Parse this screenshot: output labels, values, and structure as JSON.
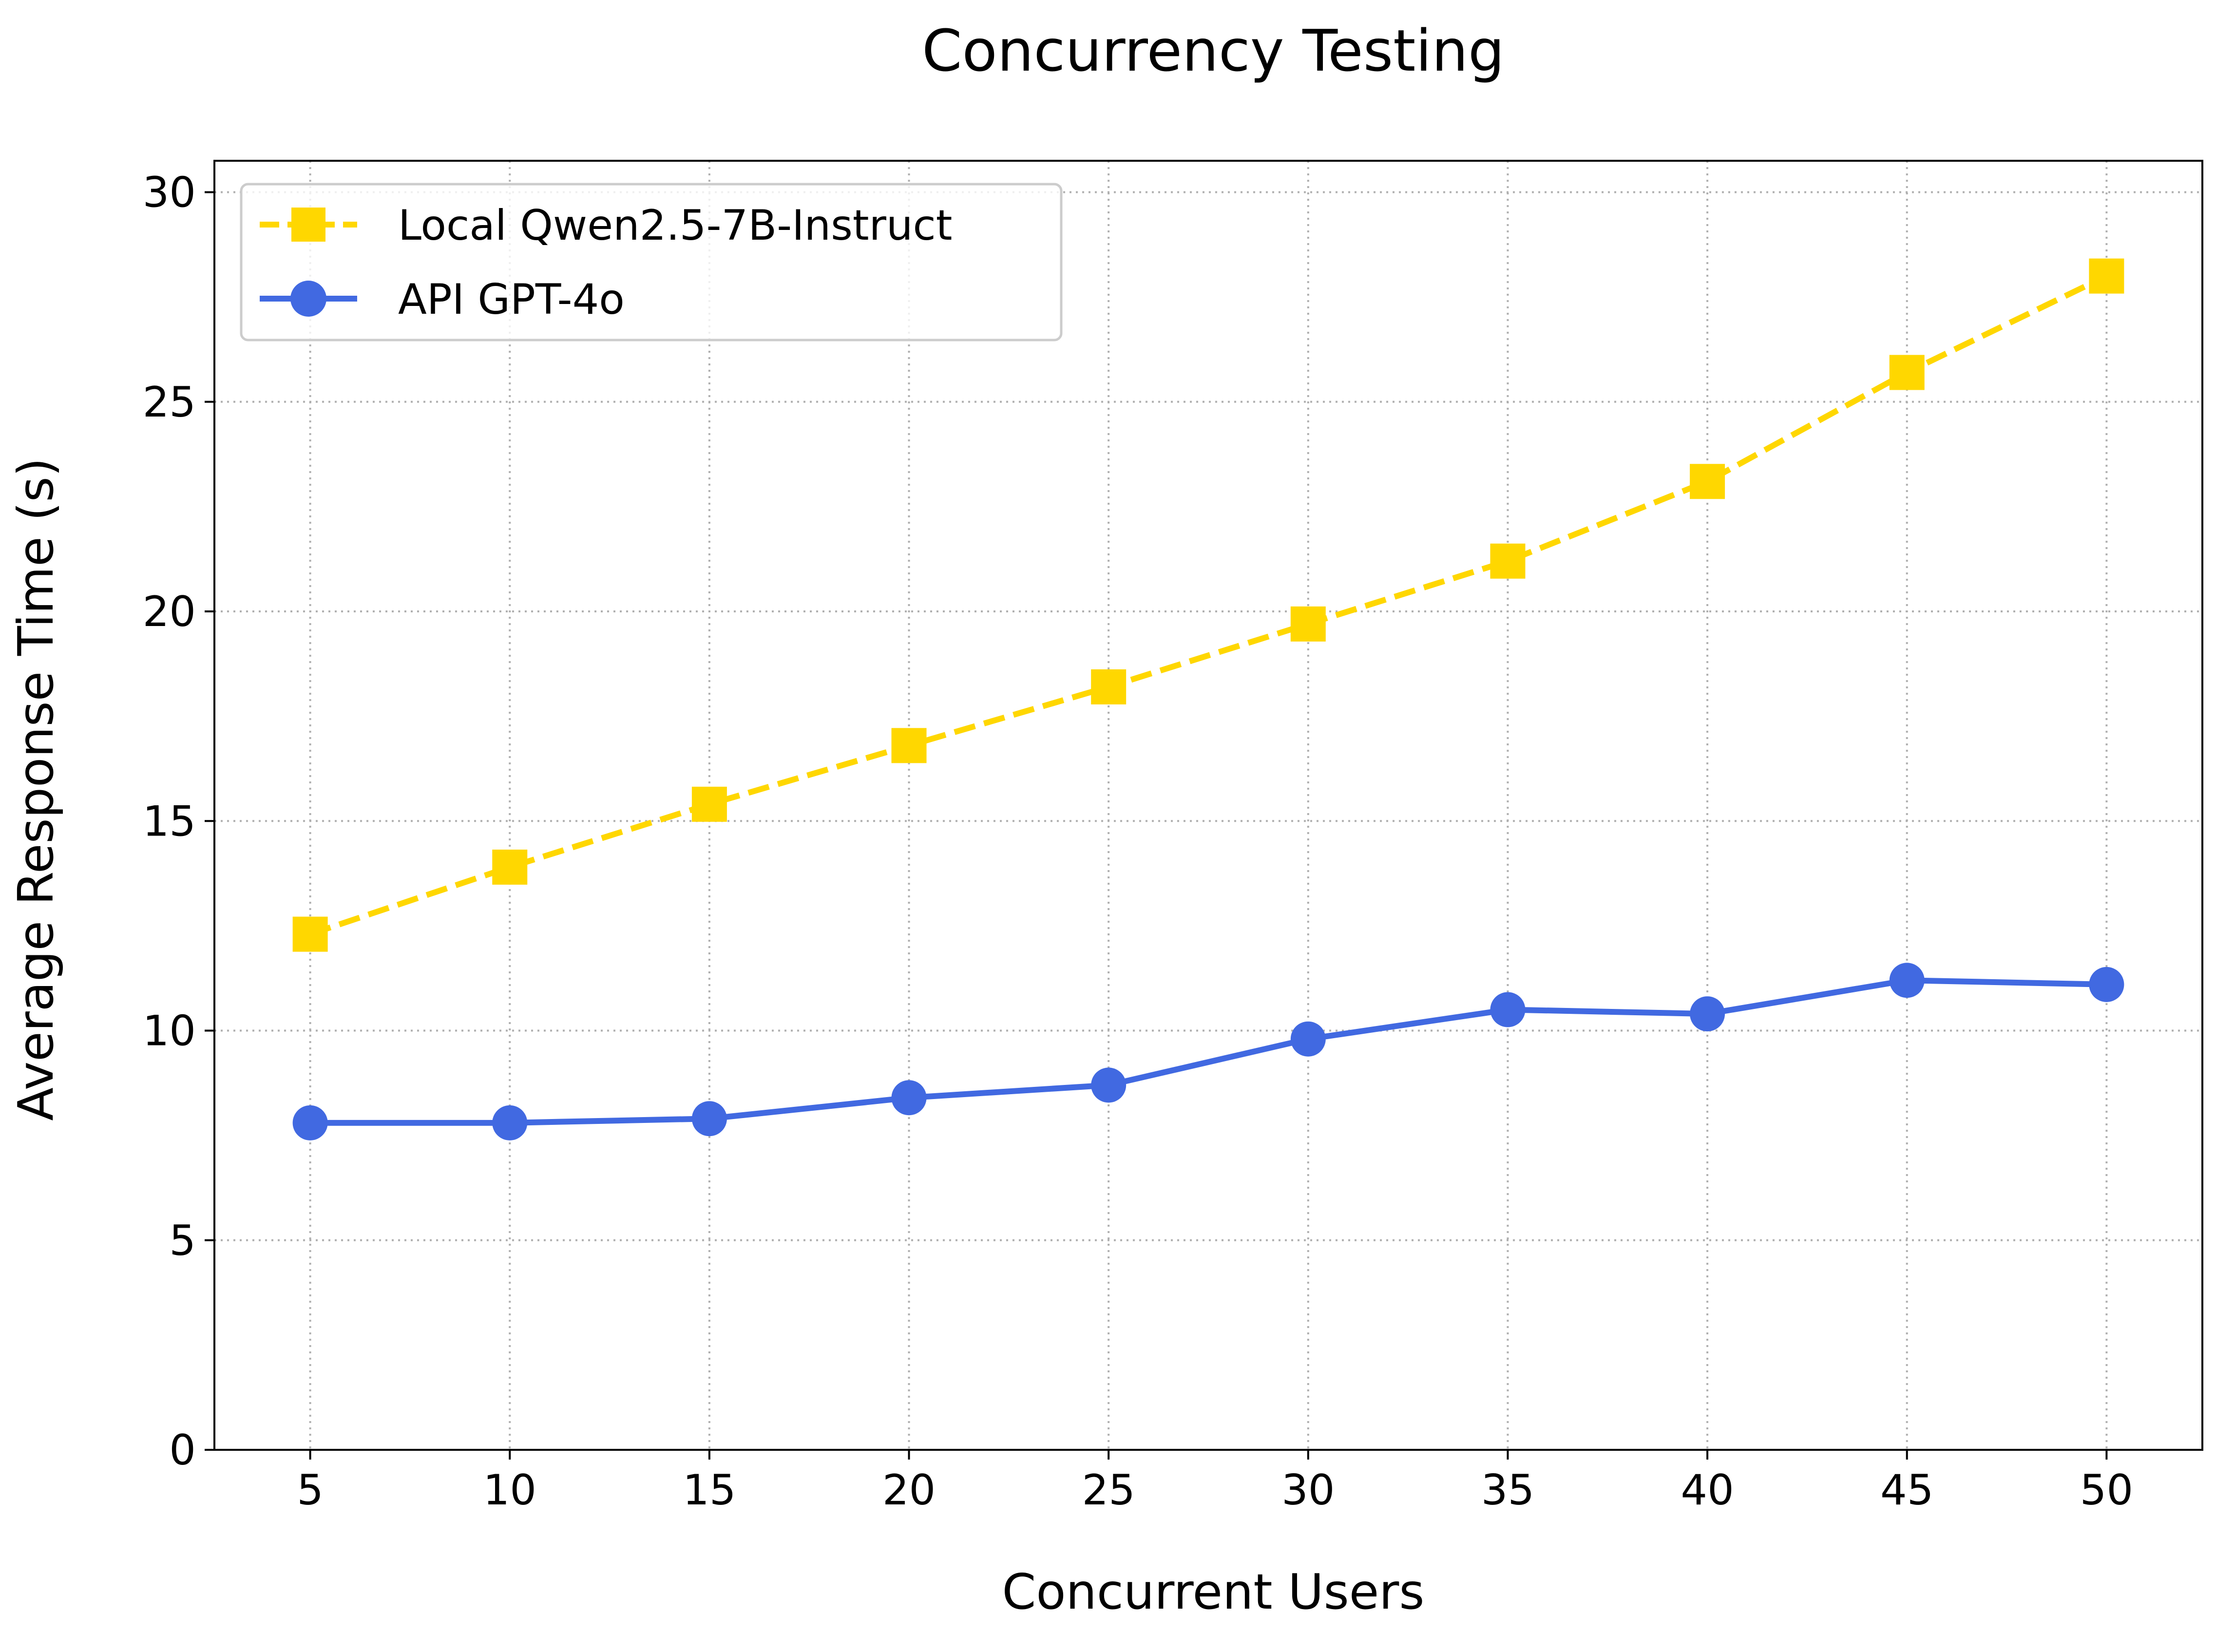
{
  "chart_data": {
    "type": "line",
    "title": "Concurrency Testing",
    "xlabel": "Concurrent Users",
    "ylabel": "Average Response Time (s)",
    "x": [
      5,
      10,
      15,
      20,
      25,
      30,
      35,
      40,
      45,
      50
    ],
    "x_ticks": [
      "5",
      "10",
      "15",
      "20",
      "25",
      "30",
      "35",
      "40",
      "45",
      "50"
    ],
    "y_ticks": [
      "0",
      "5",
      "10",
      "15",
      "20",
      "25",
      "30"
    ],
    "xlim": [
      2.6,
      52.4
    ],
    "ylim": [
      0,
      30.75
    ],
    "grid": true,
    "legend_position": "upper-left",
    "series": [
      {
        "name": "Local Qwen2.5-7B-Instruct",
        "values": [
          12.3,
          13.9,
          15.4,
          16.8,
          18.2,
          19.7,
          21.2,
          23.1,
          25.7,
          28.0
        ],
        "color": "#FFD700",
        "line_style": "dashed",
        "marker": "square"
      },
      {
        "name": "API GPT-4o",
        "values": [
          7.8,
          7.8,
          7.9,
          8.4,
          8.7,
          9.8,
          10.5,
          10.4,
          11.2,
          11.1
        ],
        "color": "#4169E1",
        "line_style": "solid",
        "marker": "circle"
      }
    ]
  }
}
